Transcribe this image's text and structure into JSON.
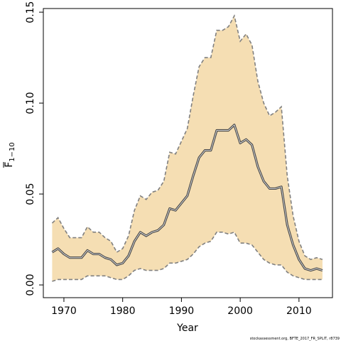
{
  "chart_data": {
    "type": "line",
    "title": "",
    "xlabel": "Year",
    "ylabel_main": "F",
    "ylabel_subscript": "1−10",
    "xlim": [
      1966.5,
      2015.7
    ],
    "ylim": [
      -0.007,
      0.152
    ],
    "xticks": [
      1970,
      1980,
      1990,
      2000,
      2010
    ],
    "xtick_labels": [
      "1970",
      "1980",
      "1990",
      "2000",
      "2010"
    ],
    "yticks": [
      0.0,
      0.05,
      0.1,
      0.15
    ],
    "ytick_labels": [
      "0.00",
      "0.05",
      "0.10",
      "0.15"
    ],
    "grid": false,
    "legend": "none",
    "colors": {
      "band_fill": "#f5deb3",
      "band_edge": "#808080",
      "line": "#444444",
      "line_halo": "#dddddd"
    },
    "x": [
      1968,
      1969,
      1970,
      1971,
      1972,
      1973,
      1974,
      1975,
      1976,
      1977,
      1978,
      1979,
      1980,
      1981,
      1982,
      1983,
      1984,
      1985,
      1986,
      1987,
      1988,
      1989,
      1990,
      1991,
      1992,
      1993,
      1994,
      1995,
      1996,
      1997,
      1998,
      1999,
      2000,
      2001,
      2002,
      2003,
      2004,
      2005,
      2006,
      2007,
      2008,
      2009,
      2010,
      2011,
      2012,
      2013,
      2014
    ],
    "series": [
      {
        "role": "estimate",
        "values": [
          0.018,
          0.02,
          0.017,
          0.015,
          0.015,
          0.015,
          0.019,
          0.017,
          0.017,
          0.015,
          0.014,
          0.011,
          0.012,
          0.016,
          0.024,
          0.029,
          0.027,
          0.029,
          0.03,
          0.033,
          0.042,
          0.041,
          0.045,
          0.049,
          0.06,
          0.07,
          0.074,
          0.074,
          0.085,
          0.085,
          0.085,
          0.088,
          0.078,
          0.08,
          0.077,
          0.065,
          0.057,
          0.053,
          0.053,
          0.054,
          0.033,
          0.022,
          0.014,
          0.009,
          0.008,
          0.009,
          0.008
        ]
      },
      {
        "role": "upper_bound",
        "values": [
          0.034,
          0.037,
          0.031,
          0.026,
          0.026,
          0.026,
          0.032,
          0.029,
          0.029,
          0.026,
          0.024,
          0.018,
          0.02,
          0.027,
          0.041,
          0.049,
          0.047,
          0.051,
          0.052,
          0.057,
          0.073,
          0.072,
          0.079,
          0.086,
          0.104,
          0.12,
          0.125,
          0.125,
          0.14,
          0.14,
          0.142,
          0.148,
          0.134,
          0.138,
          0.132,
          0.112,
          0.1,
          0.093,
          0.095,
          0.098,
          0.06,
          0.038,
          0.024,
          0.016,
          0.014,
          0.015,
          0.014
        ]
      },
      {
        "role": "lower_bound",
        "values": [
          0.002,
          0.003,
          0.003,
          0.003,
          0.003,
          0.003,
          0.005,
          0.005,
          0.005,
          0.005,
          0.004,
          0.003,
          0.003,
          0.005,
          0.008,
          0.009,
          0.008,
          0.008,
          0.008,
          0.009,
          0.012,
          0.012,
          0.013,
          0.014,
          0.017,
          0.021,
          0.023,
          0.024,
          0.029,
          0.029,
          0.028,
          0.029,
          0.023,
          0.023,
          0.022,
          0.018,
          0.014,
          0.012,
          0.011,
          0.011,
          0.007,
          0.005,
          0.004,
          0.003,
          0.003,
          0.003,
          0.003
        ]
      }
    ],
    "credit": "stockassessment.org, BFTE_2017_FR_SPLIT, r8739"
  }
}
